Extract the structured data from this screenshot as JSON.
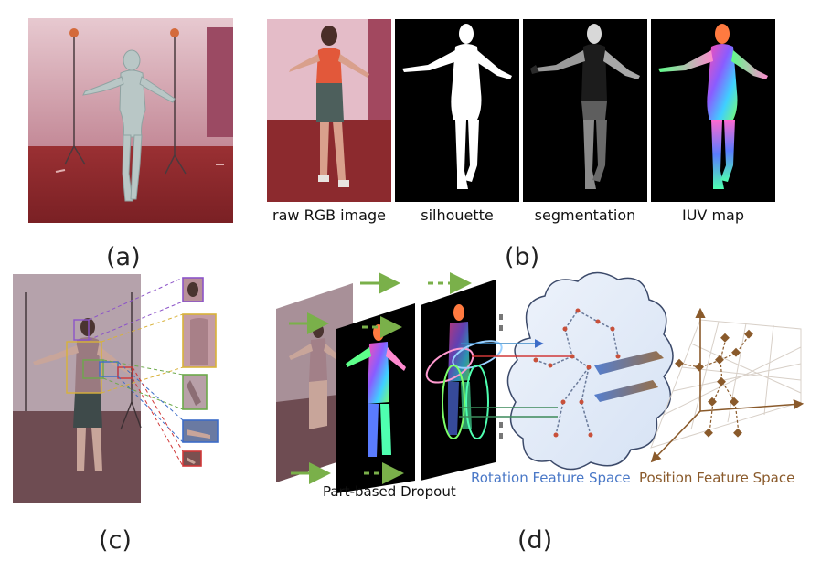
{
  "panels": {
    "a": {
      "label": "(a)"
    },
    "b": {
      "label": "(b)",
      "captions": [
        "raw RGB image",
        "silhouette",
        "segmentation",
        "IUV map"
      ]
    },
    "c": {
      "label": "(c)"
    },
    "d": {
      "label": "(d)",
      "dropout_label": "Part-based Dropout",
      "rotation_label": "Rotation Feature Space",
      "position_label": "Position Feature Space"
    }
  },
  "colors": {
    "rotation_text": "#4a78c7",
    "position_text": "#8a5a2b",
    "green_arrow": "#7ab04a",
    "floor": "#8e2a2c",
    "wall": "#c99aa7"
  }
}
